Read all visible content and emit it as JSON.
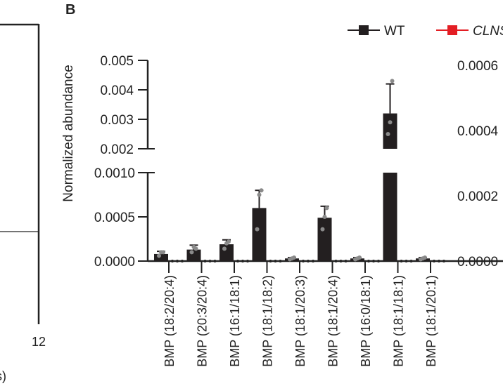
{
  "panel_label": "B",
  "left_panel": {
    "tick_label": "12",
    "axis_fragment": "s)"
  },
  "chart_data": {
    "type": "bar",
    "ylabel": "Normalized abundance",
    "broken_axis": true,
    "ylim_lower": [
      0,
      0.001
    ],
    "ylim_upper": [
      0.002,
      0.005
    ],
    "yticks_lower": [
      "0.0000",
      "0.0005",
      "0.0010"
    ],
    "yticks_upper": [
      "0.002",
      "0.003",
      "0.004",
      "0.005"
    ],
    "right_axis_ticks": [
      "0.0000",
      "0.0002",
      "0.0004",
      "0.0006"
    ],
    "legend_position": "top-right",
    "legend": [
      {
        "name": "WT",
        "color": "#231f20"
      },
      {
        "name": "CLNS",
        "color": "#e31e24"
      }
    ],
    "categories": [
      "BMP (18:2/20:4)",
      "BMP (20:3/20:4)",
      "BMP (16:1/18:1)",
      "BMP (18:1/18:2)",
      "BMP (18:1/20:3)",
      "BMP (18:1/20:4)",
      "BMP (16:0/18:1)",
      "BMP (18:1/18:1)",
      "BMP (18:1/20:1)"
    ],
    "series": [
      {
        "name": "WT",
        "values": [
          8e-05,
          0.00013,
          0.00019,
          0.0006,
          3e-05,
          0.00049,
          3e-05,
          0.0032,
          3e-05
        ],
        "error_upper": [
          0.00011,
          0.00018,
          0.00024,
          0.0008,
          4e-05,
          0.00062,
          4e-05,
          0.0042,
          4e-05
        ],
        "points": [
          [
            6e-05,
            0.0001,
            0.0001
          ],
          [
            0.0001,
            0.00016,
            0.00014
          ],
          [
            0.00014,
            0.0002,
            0.00022
          ],
          [
            0.00036,
            0.00075,
            0.0008
          ],
          [
            2e-05,
            3e-05,
            4e-05
          ],
          [
            0.00036,
            0.0005,
            0.0006
          ],
          [
            2e-05,
            3e-05,
            4e-05
          ],
          [
            0.0025,
            0.0029,
            0.0043
          ],
          [
            2e-05,
            3e-05,
            4e-05
          ]
        ]
      },
      {
        "name": "CLNS",
        "values": [
          0,
          0,
          0,
          0,
          0,
          0,
          0,
          0,
          0
        ]
      }
    ]
  }
}
